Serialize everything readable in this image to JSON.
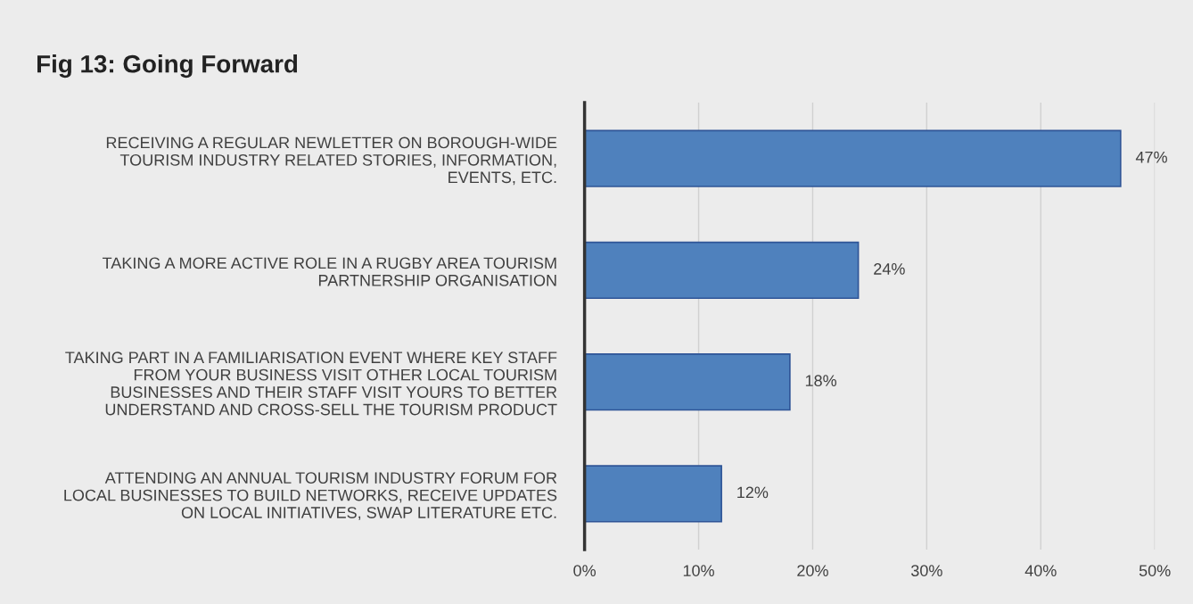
{
  "chart_data": {
    "type": "bar",
    "orientation": "horizontal",
    "title": "Fig 13: Going Forward",
    "categories": [
      "RECEIVING A REGULAR NEWLETTER ON BOROUGH-WIDE\nTOURISM INDUSTRY RELATED STORIES, INFORMATION,\nEVENTS, ETC.",
      "TAKING A MORE ACTIVE ROLE IN A RUGBY AREA TOURISM\nPARTNERSHIP ORGANISATION",
      "TAKING PART IN A FAMILIARISATION EVENT WHERE KEY STAFF\nFROM YOUR BUSINESS VISIT OTHER LOCAL TOURISM\nBUSINESSES AND THEIR STAFF VISIT YOURS TO BETTER\nUNDERSTAND AND CROSS-SELL THE TOURISM PRODUCT",
      "ATTENDING AN ANNUAL TOURISM INDUSTRY FORUM FOR\nLOCAL BUSINESSES TO BUILD NETWORKS, RECEIVE UPDATES\nON LOCAL INITIATIVES, SWAP LITERATURE ETC."
    ],
    "values": [
      47,
      24,
      18,
      12
    ],
    "value_labels": [
      "47%",
      "24%",
      "18%",
      "12%"
    ],
    "color": "#4f81bd",
    "xlim": [
      0,
      50
    ],
    "xticks": [
      {
        "value": 0,
        "label": "0%"
      },
      {
        "value": 10,
        "label": "10%"
      },
      {
        "value": 20,
        "label": "20%"
      },
      {
        "value": 30,
        "label": "30%"
      },
      {
        "value": 40,
        "label": "40%"
      },
      {
        "value": 50,
        "label": "50%"
      }
    ],
    "grid": "x"
  }
}
